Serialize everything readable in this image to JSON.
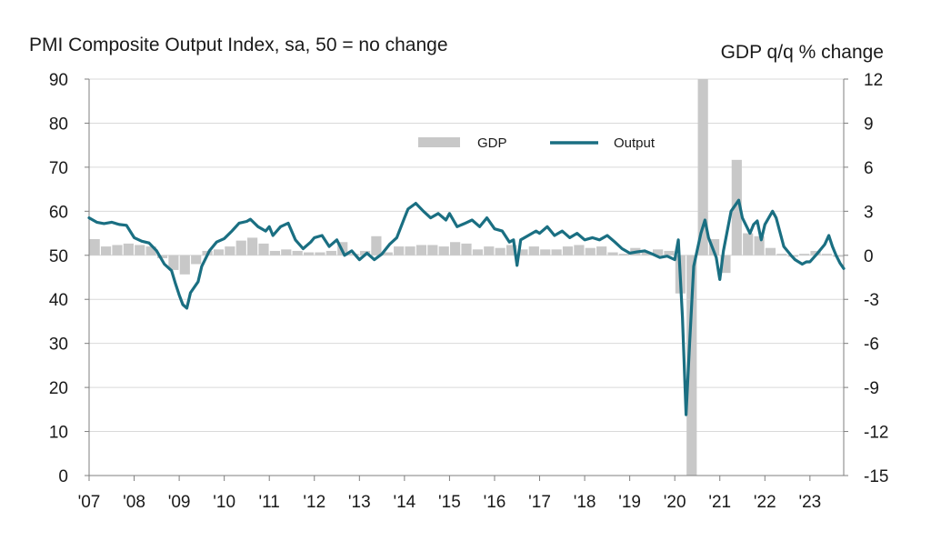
{
  "chart_data": {
    "type": "bar+line",
    "title_left": "PMI Composite  Output  Index, sa, 50 = no change",
    "title_right": "GDP q/q % change",
    "left_axis": {
      "min": 0,
      "max": 90,
      "ticks": [
        "0",
        "10",
        "20",
        "30",
        "40",
        "50",
        "60",
        "70",
        "80",
        "90"
      ]
    },
    "right_axis": {
      "min": -15,
      "max": 12,
      "ticks": [
        "-15",
        "-12",
        "-9",
        "-6",
        "-3",
        "0",
        "3",
        "6",
        "9",
        "12"
      ]
    },
    "x_axis": {
      "start_year": 2007,
      "end_year": 2023.75,
      "ticks": [
        "'07",
        "'08",
        "'09",
        "'10",
        "'11",
        "'12",
        "'13",
        "'14",
        "'15",
        "'16",
        "'17",
        "'18",
        "'19",
        "'20",
        "'21",
        "'22",
        "'23"
      ]
    },
    "legend": {
      "gdp_label": "GDP",
      "output_label": "Output"
    },
    "colors": {
      "gdp": "#c8c8c8",
      "output": "#1a6f82",
      "grid": "#d9d9d9",
      "axis": "#7f7f7f"
    },
    "series": [
      {
        "name": "GDP",
        "axis": "right",
        "kind": "bar",
        "unit": "% q/q",
        "quarters": [
          {
            "q": "2007Q1",
            "v": 1.1
          },
          {
            "q": "2007Q2",
            "v": 0.6
          },
          {
            "q": "2007Q3",
            "v": 0.7
          },
          {
            "q": "2007Q4",
            "v": 0.8
          },
          {
            "q": "2008Q1",
            "v": 0.7
          },
          {
            "q": "2008Q2",
            "v": 0.6
          },
          {
            "q": "2008Q3",
            "v": -0.2
          },
          {
            "q": "2008Q4",
            "v": -1.0
          },
          {
            "q": "2009Q1",
            "v": -1.3
          },
          {
            "q": "2009Q2",
            "v": -0.6
          },
          {
            "q": "2009Q3",
            "v": 0.3
          },
          {
            "q": "2009Q4",
            "v": 0.4
          },
          {
            "q": "2010Q1",
            "v": 0.6
          },
          {
            "q": "2010Q2",
            "v": 1.0
          },
          {
            "q": "2010Q3",
            "v": 1.2
          },
          {
            "q": "2010Q4",
            "v": 0.8
          },
          {
            "q": "2011Q1",
            "v": 0.3
          },
          {
            "q": "2011Q2",
            "v": 0.4
          },
          {
            "q": "2011Q3",
            "v": 0.3
          },
          {
            "q": "2011Q4",
            "v": 0.2
          },
          {
            "q": "2012Q1",
            "v": 0.2
          },
          {
            "q": "2012Q2",
            "v": 0.3
          },
          {
            "q": "2012Q3",
            "v": 0.9
          },
          {
            "q": "2012Q4",
            "v": 0.1
          },
          {
            "q": "2013Q1",
            "v": 0.3
          },
          {
            "q": "2013Q2",
            "v": 1.3
          },
          {
            "q": "2013Q3",
            "v": 0.2
          },
          {
            "q": "2013Q4",
            "v": 0.6
          },
          {
            "q": "2014Q1",
            "v": 0.6
          },
          {
            "q": "2014Q2",
            "v": 0.7
          },
          {
            "q": "2014Q3",
            "v": 0.7
          },
          {
            "q": "2014Q4",
            "v": 0.6
          },
          {
            "q": "2015Q1",
            "v": 0.9
          },
          {
            "q": "2015Q2",
            "v": 0.8
          },
          {
            "q": "2015Q3",
            "v": 0.4
          },
          {
            "q": "2015Q4",
            "v": 0.6
          },
          {
            "q": "2016Q1",
            "v": 0.5
          },
          {
            "q": "2016Q2",
            "v": 0.7
          },
          {
            "q": "2016Q3",
            "v": 0.4
          },
          {
            "q": "2016Q4",
            "v": 0.6
          },
          {
            "q": "2017Q1",
            "v": 0.4
          },
          {
            "q": "2017Q2",
            "v": 0.4
          },
          {
            "q": "2017Q3",
            "v": 0.6
          },
          {
            "q": "2017Q4",
            "v": 0.7
          },
          {
            "q": "2018Q1",
            "v": 0.5
          },
          {
            "q": "2018Q2",
            "v": 0.6
          },
          {
            "q": "2018Q3",
            "v": 0.2
          },
          {
            "q": "2018Q4",
            "v": 0.1
          },
          {
            "q": "2019Q1",
            "v": 0.5
          },
          {
            "q": "2019Q2",
            "v": 0.2
          },
          {
            "q": "2019Q3",
            "v": 0.4
          },
          {
            "q": "2019Q4",
            "v": 0.3
          },
          {
            "q": "2020Q1",
            "v": -2.6
          },
          {
            "q": "2020Q2",
            "v": -15.0
          },
          {
            "q": "2020Q3",
            "v": 12.0
          },
          {
            "q": "2020Q4",
            "v": 1.1
          },
          {
            "q": "2021Q1",
            "v": -1.2
          },
          {
            "q": "2021Q2",
            "v": 6.5
          },
          {
            "q": "2021Q3",
            "v": 1.5
          },
          {
            "q": "2021Q4",
            "v": 1.3
          },
          {
            "q": "2022Q1",
            "v": 0.5
          },
          {
            "q": "2022Q2",
            "v": 0.1
          },
          {
            "q": "2022Q3",
            "v": -0.1
          },
          {
            "q": "2022Q4",
            "v": 0.1
          },
          {
            "q": "2023Q1",
            "v": 0.3
          },
          {
            "q": "2023Q2",
            "v": 0.1
          },
          {
            "q": "2023Q3",
            "v": -0.1
          }
        ]
      },
      {
        "name": "Output",
        "axis": "left",
        "kind": "line",
        "unit": "index",
        "points": [
          [
            2007.0,
            58.5
          ],
          [
            2007.17,
            57.5
          ],
          [
            2007.33,
            57.2
          ],
          [
            2007.5,
            57.5
          ],
          [
            2007.67,
            57.0
          ],
          [
            2007.83,
            56.8
          ],
          [
            2008.0,
            54.0
          ],
          [
            2008.17,
            53.2
          ],
          [
            2008.33,
            52.8
          ],
          [
            2008.5,
            51.0
          ],
          [
            2008.67,
            48.0
          ],
          [
            2008.83,
            46.5
          ],
          [
            2008.92,
            43.5
          ],
          [
            2009.0,
            41.0
          ],
          [
            2009.08,
            38.8
          ],
          [
            2009.17,
            38.0
          ],
          [
            2009.25,
            41.5
          ],
          [
            2009.42,
            44.0
          ],
          [
            2009.5,
            47.5
          ],
          [
            2009.67,
            51.0
          ],
          [
            2009.83,
            53.0
          ],
          [
            2010.0,
            53.8
          ],
          [
            2010.17,
            55.5
          ],
          [
            2010.33,
            57.3
          ],
          [
            2010.5,
            57.7
          ],
          [
            2010.58,
            58.2
          ],
          [
            2010.75,
            56.5
          ],
          [
            2010.92,
            55.5
          ],
          [
            2011.0,
            56.5
          ],
          [
            2011.08,
            54.5
          ],
          [
            2011.25,
            56.5
          ],
          [
            2011.42,
            57.3
          ],
          [
            2011.58,
            53.5
          ],
          [
            2011.75,
            51.5
          ],
          [
            2011.92,
            53.0
          ],
          [
            2012.0,
            54.0
          ],
          [
            2012.17,
            54.5
          ],
          [
            2012.33,
            52.0
          ],
          [
            2012.5,
            53.5
          ],
          [
            2012.67,
            50.0
          ],
          [
            2012.83,
            51.0
          ],
          [
            2013.0,
            49.0
          ],
          [
            2013.17,
            50.5
          ],
          [
            2013.33,
            49.0
          ],
          [
            2013.5,
            50.3
          ],
          [
            2013.67,
            52.5
          ],
          [
            2013.83,
            54.0
          ],
          [
            2014.0,
            58.5
          ],
          [
            2014.08,
            60.5
          ],
          [
            2014.25,
            61.8
          ],
          [
            2014.42,
            60.0
          ],
          [
            2014.58,
            58.5
          ],
          [
            2014.75,
            59.5
          ],
          [
            2014.92,
            58.0
          ],
          [
            2015.0,
            59.5
          ],
          [
            2015.17,
            56.5
          ],
          [
            2015.33,
            57.2
          ],
          [
            2015.5,
            58.0
          ],
          [
            2015.67,
            56.5
          ],
          [
            2015.83,
            58.5
          ],
          [
            2016.0,
            56.0
          ],
          [
            2016.17,
            55.5
          ],
          [
            2016.33,
            53.0
          ],
          [
            2016.42,
            53.5
          ],
          [
            2016.5,
            47.7
          ],
          [
            2016.58,
            53.5
          ],
          [
            2016.75,
            54.5
          ],
          [
            2016.92,
            55.5
          ],
          [
            2017.0,
            55.0
          ],
          [
            2017.17,
            56.5
          ],
          [
            2017.33,
            54.5
          ],
          [
            2017.5,
            55.5
          ],
          [
            2017.67,
            54.0
          ],
          [
            2017.83,
            55.0
          ],
          [
            2018.0,
            53.5
          ],
          [
            2018.17,
            54.0
          ],
          [
            2018.33,
            53.5
          ],
          [
            2018.5,
            54.5
          ],
          [
            2018.67,
            53.0
          ],
          [
            2018.83,
            51.5
          ],
          [
            2019.0,
            50.5
          ],
          [
            2019.17,
            50.8
          ],
          [
            2019.33,
            51.0
          ],
          [
            2019.5,
            50.3
          ],
          [
            2019.67,
            49.5
          ],
          [
            2019.83,
            49.8
          ],
          [
            2020.0,
            49.0
          ],
          [
            2020.08,
            53.5
          ],
          [
            2020.17,
            36.0
          ],
          [
            2020.25,
            13.8
          ],
          [
            2020.33,
            30.0
          ],
          [
            2020.42,
            47.5
          ],
          [
            2020.58,
            55.0
          ],
          [
            2020.67,
            58.0
          ],
          [
            2020.75,
            54.0
          ],
          [
            2020.92,
            49.5
          ],
          [
            2021.0,
            44.5
          ],
          [
            2021.08,
            51.0
          ],
          [
            2021.25,
            60.0
          ],
          [
            2021.42,
            62.5
          ],
          [
            2021.5,
            58.5
          ],
          [
            2021.67,
            55.0
          ],
          [
            2021.75,
            57.0
          ],
          [
            2021.83,
            57.8
          ],
          [
            2021.92,
            53.5
          ],
          [
            2022.0,
            57.0
          ],
          [
            2022.17,
            60.0
          ],
          [
            2022.25,
            58.5
          ],
          [
            2022.42,
            52.0
          ],
          [
            2022.58,
            50.0
          ],
          [
            2022.67,
            49.0
          ],
          [
            2022.83,
            48.0
          ],
          [
            2022.92,
            48.5
          ],
          [
            2023.0,
            48.5
          ],
          [
            2023.17,
            50.5
          ],
          [
            2023.33,
            52.5
          ],
          [
            2023.42,
            54.5
          ],
          [
            2023.5,
            52.0
          ],
          [
            2023.58,
            50.0
          ],
          [
            2023.67,
            48.2
          ],
          [
            2023.75,
            47.0
          ]
        ]
      }
    ],
    "grid": "horizontal"
  }
}
